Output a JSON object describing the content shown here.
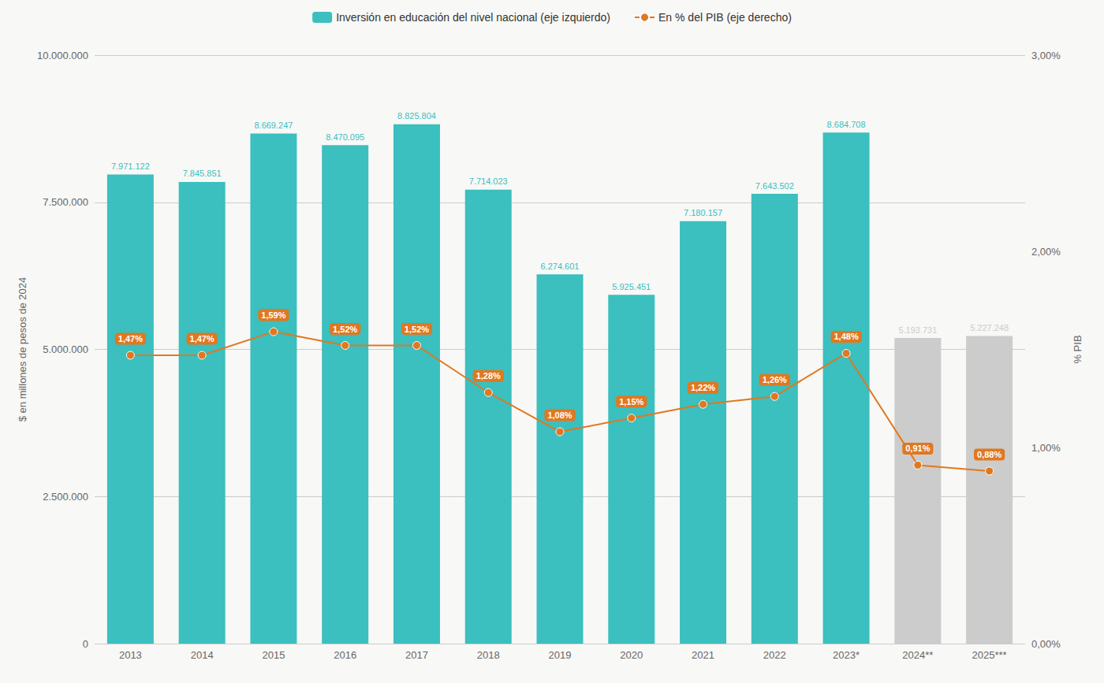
{
  "chart_data": {
    "type": "bar",
    "categories": [
      "2013",
      "2014",
      "2015",
      "2016",
      "2017",
      "2018",
      "2019",
      "2020",
      "2021",
      "2022",
      "2023*",
      "2024**",
      "2025***"
    ],
    "series": [
      {
        "name": "Inversión en educación del nivel nacional (eje izquierdo)",
        "type": "bar",
        "colors": [
          "#3bbfbf",
          "#3bbfbf",
          "#3bbfbf",
          "#3bbfbf",
          "#3bbfbf",
          "#3bbfbf",
          "#3bbfbf",
          "#3bbfbf",
          "#3bbfbf",
          "#3bbfbf",
          "#3bbfbf",
          "#cccccc",
          "#cccccc"
        ],
        "values": [
          7971122,
          7845851,
          8669247,
          8470095,
          8825804,
          7714023,
          6274601,
          5925451,
          7180157,
          7643502,
          8684708,
          5193731,
          5227248
        ],
        "value_labels": [
          "7.971.122",
          "7.845.851",
          "8.669.247",
          "8.470.095",
          "8.825.804",
          "7.714.023",
          "6.274.601",
          "5.925.451",
          "7.180.157",
          "7.643.502",
          "8.684.708",
          "5.193.731",
          "5.227.248"
        ]
      },
      {
        "name": "En % del PIB (eje derecho)",
        "type": "line",
        "axis": "y2",
        "color": "#e07820",
        "marker": "circle",
        "values": [
          1.47,
          1.47,
          1.59,
          1.52,
          1.52,
          1.28,
          1.08,
          1.15,
          1.22,
          1.26,
          1.48,
          0.91,
          0.88
        ],
        "value_labels": [
          "1,47%",
          "1,47%",
          "1,59%",
          "1,52%",
          "1,52%",
          "1,28%",
          "1,08%",
          "1,15%",
          "1,22%",
          "1,26%",
          "1,48%",
          "0,91%",
          "0,88%"
        ]
      }
    ],
    "ylabel": "$ en millones de pesos de 2024",
    "y2label": "% PIB",
    "ylim": [
      0,
      10000000
    ],
    "yticks": [
      0,
      {
        "value": 2500000,
        "label": "2.500.000"
      },
      {
        "value": 5000000,
        "label": "5.000.000"
      },
      {
        "value": 7500000,
        "label": "7.500.000"
      },
      {
        "value": 10000000,
        "label": "10.000.000"
      }
    ],
    "y2lim": [
      0.0,
      3.0
    ],
    "y2ticks": [
      {
        "value": 0.0,
        "label": "0,00%"
      },
      {
        "value": 1.0,
        "label": "1,00%"
      },
      {
        "value": 2.0,
        "label": "2,00%"
      },
      {
        "value": 3.0,
        "label": "3,00%"
      }
    ],
    "grid": true,
    "legend": "top",
    "data_labels": true
  }
}
